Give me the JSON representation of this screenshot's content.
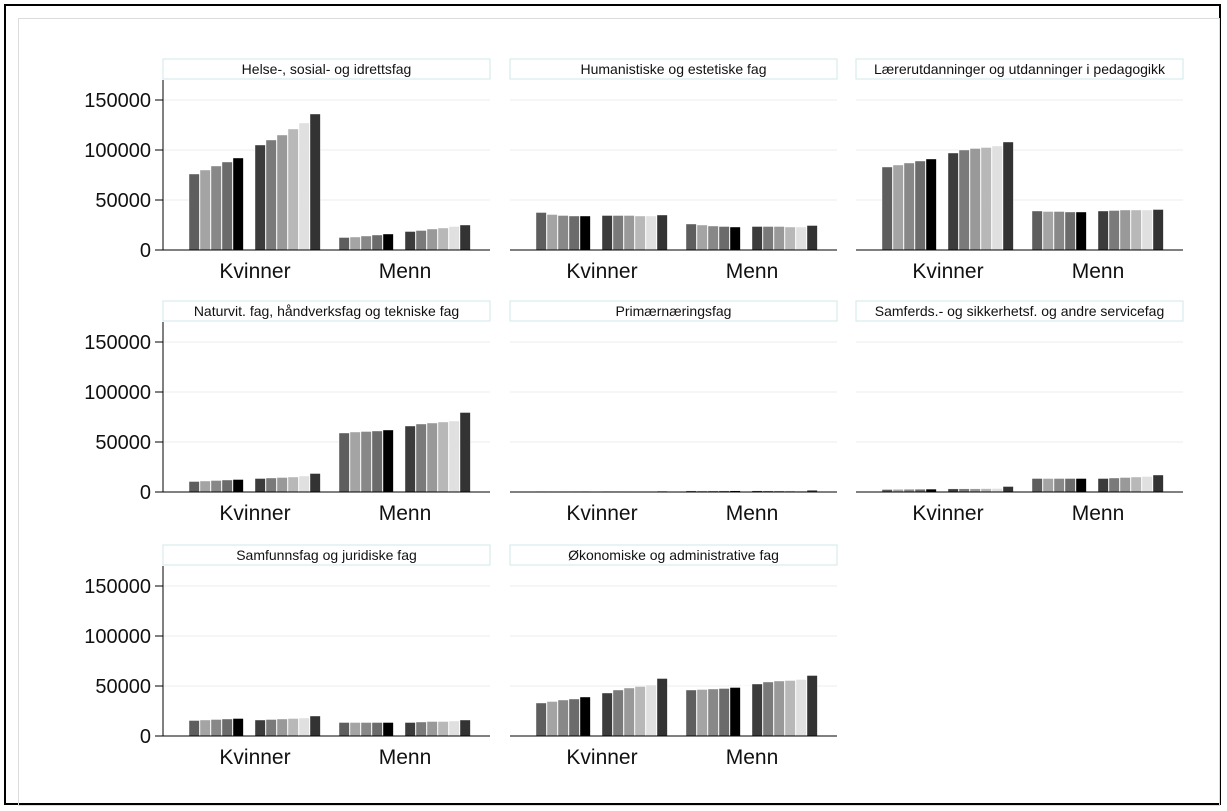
{
  "chart_data": {
    "type": "bar",
    "layout": "small-multiples 3x3 grid",
    "categories": [
      "Kvinner",
      "Menn"
    ],
    "bars_per_category": 12,
    "bar_shades": [
      "#5e5e5e",
      "#a4a4a4",
      "#888888",
      "#6b6b6b",
      "#000000",
      "#ffffff",
      "#3c3c3c",
      "#7a7a7a",
      "#999999",
      "#b8b8b8",
      "#e0e0e0",
      "#333333"
    ],
    "ylim": [
      0,
      170000
    ],
    "yticks": [
      0,
      50000,
      100000,
      150000
    ],
    "ytick_labels": [
      "0",
      "50000",
      "100000",
      "150000"
    ],
    "grid": "horizontal",
    "legend": "none",
    "panels": [
      {
        "title": "Helse-, sosial- og idrettsfag",
        "Kvinner": [
          76000,
          80000,
          84000,
          88000,
          92000,
          98000,
          105000,
          110000,
          115000,
          121000,
          127000,
          136000
        ],
        "Menn": [
          12500,
          13000,
          14000,
          15000,
          16000,
          17000,
          18500,
          19500,
          21000,
          22000,
          23500,
          25000
        ]
      },
      {
        "title": "Humanistiske og estetiske fag",
        "Kvinner": [
          37500,
          35500,
          34500,
          34000,
          34000,
          34500,
          34500,
          34500,
          34500,
          34000,
          34000,
          35000
        ],
        "Menn": [
          26000,
          25000,
          24000,
          23500,
          23000,
          23500,
          23500,
          23500,
          23500,
          23000,
          23000,
          24500
        ]
      },
      {
        "title": "Lærerutdanninger og utdanninger i pedagogikk",
        "Kvinner": [
          83000,
          85000,
          87000,
          89000,
          91000,
          94000,
          97000,
          100000,
          101500,
          102500,
          104000,
          108000
        ],
        "Menn": [
          39000,
          38500,
          38500,
          38000,
          38000,
          38500,
          39000,
          39500,
          40000,
          40000,
          40000,
          40500
        ]
      },
      {
        "title": "Naturvit. fag, håndverksfag og tekniske fag",
        "Kvinner": [
          10500,
          11000,
          11500,
          12000,
          12500,
          13000,
          13500,
          14000,
          14500,
          15000,
          16000,
          18500
        ],
        "Menn": [
          59000,
          60000,
          60500,
          61000,
          62000,
          64000,
          66000,
          68000,
          69000,
          70000,
          71000,
          79500
        ]
      },
      {
        "title": "Primærnæringsfag",
        "Kvinner": [
          700,
          700,
          700,
          700,
          700,
          700,
          700,
          700,
          700,
          700,
          700,
          900
        ],
        "Menn": [
          1200,
          1200,
          1200,
          1200,
          1200,
          1200,
          1200,
          1200,
          1200,
          1200,
          1200,
          1800
        ]
      },
      {
        "title": "Samferds.- og sikkerhetsf. og andre servicefag",
        "Kvinner": [
          2500,
          2600,
          2700,
          2800,
          2900,
          3000,
          3100,
          3200,
          3300,
          3400,
          3500,
          5500
        ],
        "Menn": [
          13500,
          13500,
          13500,
          13500,
          13500,
          13500,
          13500,
          14000,
          14500,
          15000,
          15500,
          17000
        ]
      },
      {
        "title": "Samfunnsfag og juridiske fag",
        "Kvinner": [
          15500,
          16000,
          16500,
          17000,
          17500,
          16000,
          16000,
          16500,
          17000,
          17500,
          18000,
          20000
        ],
        "Menn": [
          13500,
          13500,
          13500,
          13500,
          13500,
          13500,
          13500,
          14000,
          14500,
          14500,
          15000,
          16000
        ]
      },
      {
        "title": "Økonomiske og administrative fag",
        "Kvinner": [
          33000,
          34500,
          36000,
          37000,
          39000,
          41000,
          43000,
          46000,
          48000,
          49500,
          51000,
          57500
        ],
        "Menn": [
          46000,
          46500,
          47000,
          47500,
          48500,
          50000,
          52000,
          54000,
          55000,
          55500,
          56500,
          60500
        ]
      }
    ]
  }
}
